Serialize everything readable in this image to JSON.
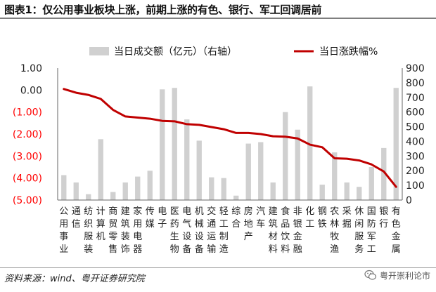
{
  "title": "图表1：仅公用事业板块上涨，前期上涨的有色、银行、军工回调居前",
  "source": "资料来源：wind、粤开证券研究院",
  "watermark": "粤开崇利论市",
  "watermark_icon": "wechat-icon",
  "colors": {
    "bar": "#d0d0d0",
    "line": "#c00000",
    "negative_tick": "#ff0000",
    "axis_text": "#222222"
  },
  "chart_data": {
    "type": "bar+line",
    "categories": [
      "公用事业",
      "通信",
      "纺织服装",
      "计算机",
      "商贸零售",
      "建筑装饰",
      "家用电器",
      "传媒",
      "电子",
      "医药生物",
      "电气设备",
      "机械设备",
      "交通运输",
      "轻工制造",
      "综合",
      "房地产",
      "汽车",
      "建筑材料",
      "食品饮料",
      "非银金融",
      "化工",
      "钢铁",
      "农林牧渔",
      "采掘",
      "休闲服务",
      "国防军工",
      "银行",
      "有色金属"
    ],
    "legend": {
      "position": "top",
      "entries": [
        "当日成交额（亿元）（右轴）",
        "当日涨跌幅%"
      ]
    },
    "series": [
      {
        "name": "当日成交额（亿元）（右轴）",
        "type": "bar",
        "axis": "right",
        "values": [
          170,
          120,
          40,
          415,
          55,
          120,
          160,
          200,
          755,
          765,
          550,
          405,
          155,
          150,
          30,
          385,
          395,
          120,
          600,
          480,
          775,
          105,
          325,
          120,
          90,
          225,
          355,
          765
        ]
      },
      {
        "name": "当日涨跌幅%",
        "type": "line",
        "axis": "left",
        "values": [
          0.05,
          -0.12,
          -0.22,
          -0.4,
          -0.9,
          -1.2,
          -1.25,
          -1.3,
          -1.4,
          -1.42,
          -1.55,
          -1.58,
          -1.68,
          -1.78,
          -1.95,
          -1.95,
          -2.0,
          -2.1,
          -2.12,
          -2.2,
          -2.48,
          -2.6,
          -3.1,
          -3.12,
          -3.2,
          -3.38,
          -3.7,
          -4.4
        ]
      }
    ],
    "left_axis": {
      "min": -5,
      "max": 1,
      "step": 1,
      "tick_labels": [
        "1.00",
        "0.00",
        "(1.00)",
        "(2.00)",
        "(3.00)",
        "(4.00)",
        "(5.00)"
      ]
    },
    "right_axis": {
      "min": 0,
      "max": 900,
      "step": 100,
      "tick_labels": [
        "900",
        "800",
        "700",
        "600",
        "500",
        "400",
        "300",
        "200",
        "100",
        "0"
      ]
    },
    "grid": false
  }
}
